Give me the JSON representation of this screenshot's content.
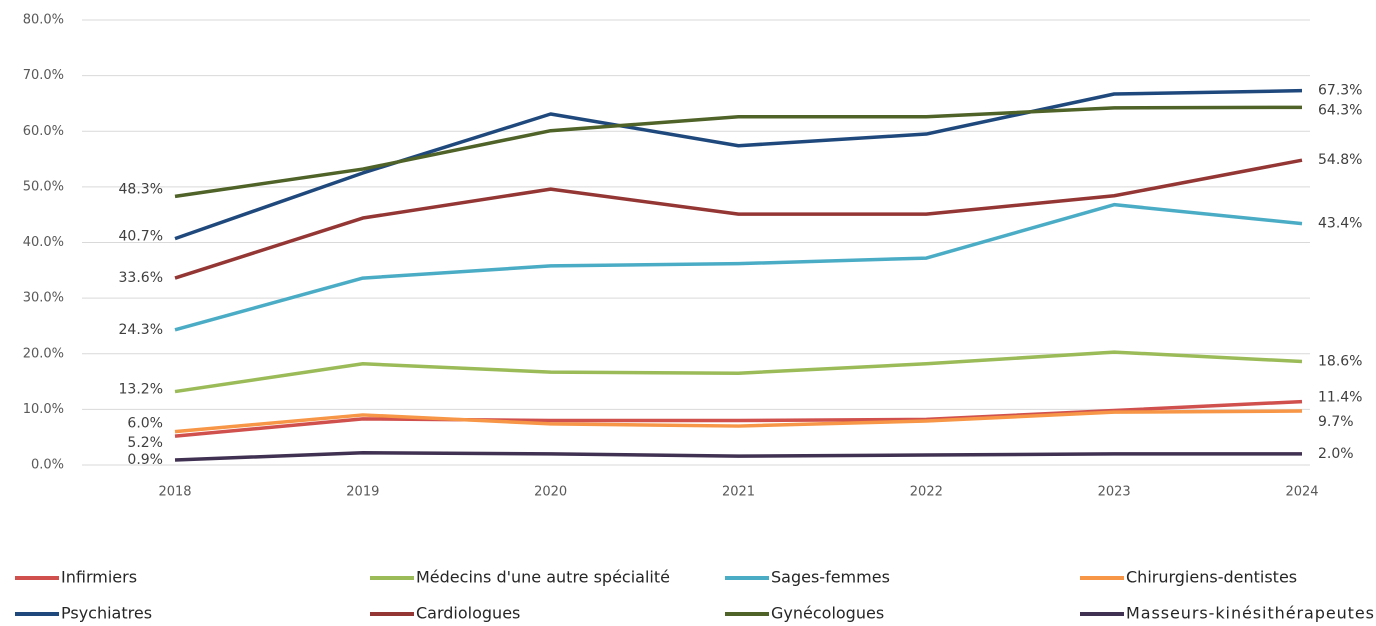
{
  "chart_data": {
    "type": "line",
    "categories": [
      "2018",
      "2019",
      "2020",
      "2021",
      "2022",
      "2023",
      "2024"
    ],
    "ylim": [
      0,
      80
    ],
    "yticks": [
      {
        "value": 0,
        "label": "0.0%"
      },
      {
        "value": 10,
        "label": "10.0%"
      },
      {
        "value": 20,
        "label": "20.0%"
      },
      {
        "value": 30,
        "label": "30.0%"
      },
      {
        "value": 40,
        "label": "40.0%"
      },
      {
        "value": 50,
        "label": "50.0%"
      },
      {
        "value": 60,
        "label": "60.0%"
      },
      {
        "value": 70,
        "label": "70.0%"
      },
      {
        "value": 80,
        "label": "80.0%"
      }
    ],
    "grid": true,
    "legend": "bottom",
    "series": [
      {
        "name": "Infirmiers",
        "color": "#d0504d",
        "values": [
          5.2,
          8.3,
          8.0,
          8.0,
          8.2,
          9.8,
          11.4
        ],
        "value_labels": [
          "5.2%",
          null,
          null,
          null,
          null,
          null,
          "11.4%"
        ]
      },
      {
        "name": "Médecins d'une autre spécialité",
        "color": "#9bbb59",
        "values": [
          13.2,
          18.2,
          16.7,
          16.5,
          18.2,
          20.3,
          18.6
        ],
        "value_labels": [
          "13.2%",
          null,
          null,
          null,
          null,
          null,
          "18.6%"
        ]
      },
      {
        "name": "Sages-femmes",
        "color": "#4bacc6",
        "values": [
          24.3,
          33.6,
          35.8,
          36.2,
          37.2,
          46.8,
          43.4
        ],
        "value_labels": [
          "24.3%",
          null,
          null,
          null,
          null,
          null,
          "43.4%"
        ]
      },
      {
        "name": "Chirurgiens-dentistes",
        "color": "#f79646",
        "values": [
          6.0,
          9.0,
          7.4,
          7.0,
          7.9,
          9.5,
          9.7
        ],
        "value_labels": [
          "6.0%",
          null,
          null,
          null,
          null,
          null,
          "9.7%"
        ]
      },
      {
        "name": "Psychiatres",
        "color": "#1f497d",
        "values": [
          40.7,
          52.5,
          63.1,
          57.4,
          59.5,
          66.7,
          67.3
        ],
        "value_labels": [
          "40.7%",
          null,
          null,
          null,
          null,
          null,
          "67.3%"
        ]
      },
      {
        "name": "Cardiologues",
        "color": "#943634",
        "values": [
          33.6,
          44.4,
          49.6,
          45.1,
          45.1,
          48.4,
          54.8
        ],
        "value_labels": [
          "33.6%",
          null,
          null,
          null,
          null,
          null,
          "54.8%"
        ]
      },
      {
        "name": "Gynécologues",
        "color": "#4f6228",
        "values": [
          48.3,
          53.2,
          60.1,
          62.6,
          62.6,
          64.2,
          64.3
        ],
        "value_labels": [
          "48.3%",
          null,
          null,
          null,
          null,
          null,
          "64.3%"
        ]
      },
      {
        "name": "Masseurs-kinésithérapeutes",
        "color": "#403152",
        "values": [
          0.9,
          2.2,
          2.0,
          1.6,
          1.8,
          2.0,
          2.0
        ],
        "value_labels": [
          "0.9%",
          null,
          null,
          null,
          null,
          null,
          "2.0%"
        ]
      }
    ]
  }
}
